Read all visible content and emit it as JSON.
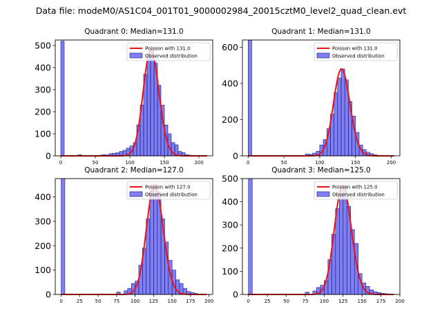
{
  "figure_title": "Data file: modeM0/AS1C04_001T01_9000002984_20015cztM0_level2_quad_clean.evt",
  "colors": {
    "bar_fill": "#7b7bef",
    "bar_edge": "#1a1a80",
    "curve": "#ee1111"
  },
  "chart_data": [
    {
      "type": "bar",
      "title": "Quadrant 0: Median=131.0",
      "median": 131.0,
      "legend": {
        "placement": "top-right",
        "curve_label": "Poisson with 131.0",
        "bar_label": "Observed distribution"
      },
      "xlim": [
        -8,
        220
      ],
      "ylim": [
        0,
        525
      ],
      "xticks": [
        0,
        50,
        100,
        150,
        200
      ],
      "yticks": [
        0,
        100,
        200,
        300,
        400,
        500
      ],
      "bin_width": 5,
      "bins": [
        [
          0,
          520
        ],
        [
          25,
          5
        ],
        [
          55,
          3
        ],
        [
          60,
          5
        ],
        [
          65,
          4
        ],
        [
          70,
          10
        ],
        [
          75,
          12
        ],
        [
          80,
          14
        ],
        [
          85,
          20
        ],
        [
          90,
          25
        ],
        [
          95,
          35
        ],
        [
          100,
          45
        ],
        [
          105,
          60
        ],
        [
          110,
          140
        ],
        [
          115,
          230
        ],
        [
          120,
          370
        ],
        [
          125,
          450
        ],
        [
          130,
          480
        ],
        [
          135,
          420
        ],
        [
          140,
          320
        ],
        [
          145,
          230
        ],
        [
          150,
          140
        ],
        [
          155,
          100
        ],
        [
          160,
          60
        ],
        [
          165,
          50
        ],
        [
          170,
          20
        ],
        [
          175,
          15
        ],
        [
          180,
          5
        ],
        [
          185,
          3
        ],
        [
          190,
          2
        ]
      ]
    },
    {
      "type": "bar",
      "title": "Quadrant 1: Median=131.0",
      "median": 131.0,
      "legend": {
        "placement": "top-right",
        "curve_label": "Poisson with 131.0",
        "bar_label": "Observed distribution"
      },
      "xlim": [
        -8,
        212
      ],
      "ylim": [
        0,
        640
      ],
      "xticks": [
        0,
        50,
        100,
        150,
        200
      ],
      "yticks": [
        0,
        200,
        400,
        600
      ],
      "bin_width": 5,
      "bins": [
        [
          0,
          640
        ],
        [
          80,
          10
        ],
        [
          85,
          8
        ],
        [
          90,
          15
        ],
        [
          95,
          25
        ],
        [
          100,
          60
        ],
        [
          105,
          90
        ],
        [
          110,
          150
        ],
        [
          115,
          230
        ],
        [
          120,
          350
        ],
        [
          125,
          430
        ],
        [
          130,
          480
        ],
        [
          135,
          420
        ],
        [
          140,
          300
        ],
        [
          145,
          220
        ],
        [
          150,
          130
        ],
        [
          155,
          60
        ],
        [
          160,
          35
        ],
        [
          165,
          20
        ],
        [
          170,
          12
        ],
        [
          175,
          6
        ],
        [
          180,
          3
        ]
      ]
    },
    {
      "type": "bar",
      "title": "Quadrant 2: Median=127.0",
      "median": 127.0,
      "legend": {
        "placement": "top-right",
        "curve_label": "Poisson with 127.0",
        "bar_label": "Observed distribution"
      },
      "xlim": [
        -8,
        205
      ],
      "ylim": [
        0,
        475
      ],
      "xticks": [
        0,
        25,
        50,
        75,
        100,
        125,
        150,
        175,
        200
      ],
      "yticks": [
        0,
        100,
        200,
        300,
        400
      ],
      "bin_width": 5,
      "bins": [
        [
          0,
          475
        ],
        [
          75,
          10
        ],
        [
          85,
          15
        ],
        [
          90,
          25
        ],
        [
          95,
          45
        ],
        [
          100,
          55
        ],
        [
          105,
          120
        ],
        [
          110,
          190
        ],
        [
          115,
          310
        ],
        [
          120,
          430
        ],
        [
          125,
          450
        ],
        [
          130,
          420
        ],
        [
          135,
          310
        ],
        [
          140,
          215
        ],
        [
          145,
          140
        ],
        [
          150,
          100
        ],
        [
          155,
          60
        ],
        [
          160,
          45
        ],
        [
          165,
          25
        ],
        [
          170,
          12
        ],
        [
          175,
          8
        ],
        [
          180,
          4
        ]
      ]
    },
    {
      "type": "bar",
      "title": "Quadrant 3: Median=125.0",
      "median": 125.0,
      "legend": {
        "placement": "top-right",
        "curve_label": "Poisson with 125.0",
        "bar_label": "Observed distribution"
      },
      "xlim": [
        -8,
        200
      ],
      "ylim": [
        0,
        500
      ],
      "xticks": [
        0,
        25,
        50,
        75,
        100,
        125,
        150,
        175,
        200
      ],
      "yticks": [
        0,
        100,
        200,
        300,
        400,
        500
      ],
      "bin_width": 5,
      "bins": [
        [
          0,
          500
        ],
        [
          75,
          10
        ],
        [
          85,
          15
        ],
        [
          90,
          30
        ],
        [
          95,
          40
        ],
        [
          100,
          60
        ],
        [
          105,
          150
        ],
        [
          110,
          260
        ],
        [
          115,
          370
        ],
        [
          120,
          450
        ],
        [
          125,
          470
        ],
        [
          130,
          380
        ],
        [
          135,
          280
        ],
        [
          140,
          220
        ],
        [
          145,
          90
        ],
        [
          150,
          50
        ],
        [
          155,
          35
        ],
        [
          160,
          20
        ],
        [
          165,
          12
        ],
        [
          170,
          8
        ],
        [
          175,
          5
        ],
        [
          180,
          3
        ]
      ]
    }
  ]
}
